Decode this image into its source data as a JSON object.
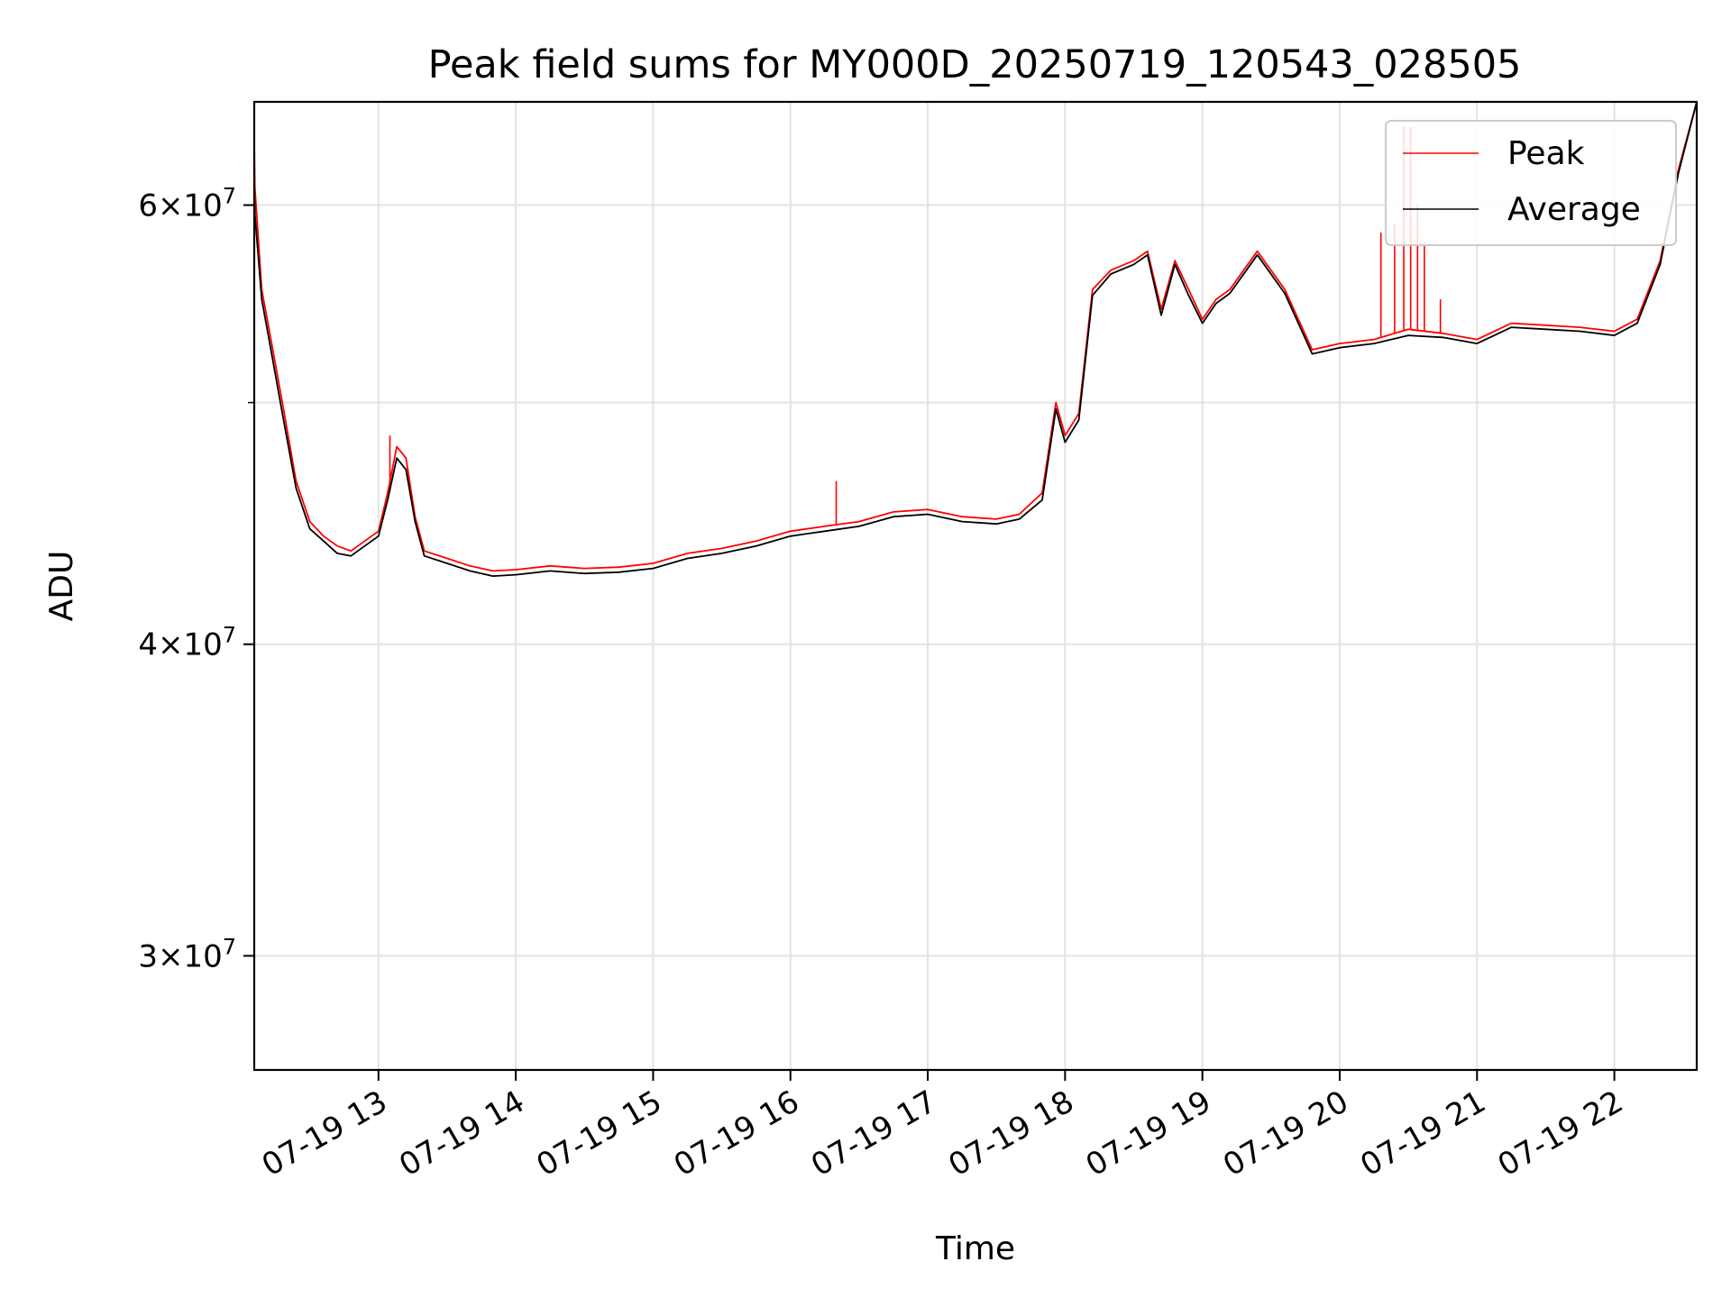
{
  "chart_data": {
    "type": "line",
    "title": "Peak field sums for MY000D_20250719_120543_028505",
    "xlabel": "Time",
    "ylabel": "ADU",
    "y_scale": "log",
    "xlim": [
      "07-19 12:05:43",
      "07-19 22:36:00"
    ],
    "ylim": [
      27000000,
      66000000
    ],
    "grid": true,
    "legend": "upper right",
    "x_ticks": [
      {
        "value": "07-19 13:00",
        "label": "07-19 13"
      },
      {
        "value": "07-19 14:00",
        "label": "07-19 14"
      },
      {
        "value": "07-19 15:00",
        "label": "07-19 15"
      },
      {
        "value": "07-19 16:00",
        "label": "07-19 16"
      },
      {
        "value": "07-19 17:00",
        "label": "07-19 17"
      },
      {
        "value": "07-19 18:00",
        "label": "07-19 18"
      },
      {
        "value": "07-19 19:00",
        "label": "07-19 19"
      },
      {
        "value": "07-19 20:00",
        "label": "07-19 20"
      },
      {
        "value": "07-19 21:00",
        "label": "07-19 21"
      },
      {
        "value": "07-19 22:00",
        "label": "07-19 22"
      }
    ],
    "y_major_ticks": [
      {
        "value": 30000000,
        "mantissa": "3",
        "exponent": "7"
      },
      {
        "value": 40000000,
        "mantissa": "4",
        "exponent": "7"
      },
      {
        "value": 60000000,
        "mantissa": "6",
        "exponent": "7"
      }
    ],
    "y_minor_ticks": [
      50000000
    ],
    "series": [
      {
        "name": "Peak",
        "color": "#ff0000",
        "points": [
          [
            "07-19 12:05:43",
            63500000
          ],
          [
            "07-19 12:06",
            61000000
          ],
          [
            "07-19 12:09",
            55500000
          ],
          [
            "07-19 12:13",
            53000000
          ],
          [
            "07-19 12:18",
            50000000
          ],
          [
            "07-19 12:24",
            46500000
          ],
          [
            "07-19 12:30",
            44800000
          ],
          [
            "07-19 12:36",
            44200000
          ],
          [
            "07-19 12:42",
            43800000
          ],
          [
            "07-19 12:48",
            43600000
          ],
          [
            "07-19 12:54",
            44000000
          ],
          [
            "07-19 13:00",
            44400000
          ],
          [
            "07-19 13:04",
            46000000
          ],
          [
            "07-19 13:08",
            48000000
          ],
          [
            "07-19 13:12",
            47500000
          ],
          [
            "07-19 13:16",
            45000000
          ],
          [
            "07-19 13:20",
            43600000
          ],
          [
            "07-19 13:30",
            43300000
          ],
          [
            "07-19 13:40",
            43000000
          ],
          [
            "07-19 13:50",
            42800000
          ],
          [
            "07-19 14:00",
            42850000
          ],
          [
            "07-19 14:15",
            43000000
          ],
          [
            "07-19 14:30",
            42900000
          ],
          [
            "07-19 14:45",
            42950000
          ],
          [
            "07-19 15:00",
            43100000
          ],
          [
            "07-19 15:15",
            43500000
          ],
          [
            "07-19 15:30",
            43700000
          ],
          [
            "07-19 15:45",
            44000000
          ],
          [
            "07-19 16:00",
            44400000
          ],
          [
            "07-19 16:15",
            44600000
          ],
          [
            "07-19 16:30",
            44800000
          ],
          [
            "07-19 16:45",
            45200000
          ],
          [
            "07-19 17:00",
            45300000
          ],
          [
            "07-19 17:15",
            45000000
          ],
          [
            "07-19 17:30",
            44900000
          ],
          [
            "07-19 17:40",
            45100000
          ],
          [
            "07-19 17:50",
            46000000
          ],
          [
            "07-19 17:56",
            50000000
          ],
          [
            "07-19 18:00",
            48500000
          ],
          [
            "07-19 18:06",
            49500000
          ],
          [
            "07-19 18:12",
            55500000
          ],
          [
            "07-19 18:20",
            56500000
          ],
          [
            "07-19 18:30",
            57000000
          ],
          [
            "07-19 18:36",
            57500000
          ],
          [
            "07-19 18:42",
            54500000
          ],
          [
            "07-19 18:48",
            57000000
          ],
          [
            "07-19 18:54",
            55500000
          ],
          [
            "07-19 19:00",
            54000000
          ],
          [
            "07-19 19:06",
            55000000
          ],
          [
            "07-19 19:12",
            55500000
          ],
          [
            "07-19 19:24",
            57500000
          ],
          [
            "07-19 19:36",
            55500000
          ],
          [
            "07-19 19:48",
            52500000
          ],
          [
            "07-19 20:00",
            52800000
          ],
          [
            "07-19 20:15",
            53000000
          ],
          [
            "07-19 20:30",
            53500000
          ],
          [
            "07-19 20:45",
            53300000
          ],
          [
            "07-19 21:00",
            53000000
          ],
          [
            "07-19 21:15",
            53800000
          ],
          [
            "07-19 21:30",
            53700000
          ],
          [
            "07-19 21:45",
            53600000
          ],
          [
            "07-19 22:00",
            53400000
          ],
          [
            "07-19 22:10",
            54000000
          ],
          [
            "07-19 22:20",
            57000000
          ],
          [
            "07-19 22:28",
            62000000
          ],
          [
            "07-19 22:36",
            66000000
          ]
        ],
        "spikes": [
          [
            "07-19 12:05:43",
            68000000
          ],
          [
            "07-19 13:05",
            48500000
          ],
          [
            "07-19 16:20",
            46500000
          ],
          [
            "07-19 20:18",
            58500000
          ],
          [
            "07-19 20:24",
            59000000
          ],
          [
            "07-19 20:28",
            64500000
          ],
          [
            "07-19 20:31",
            64500000
          ],
          [
            "07-19 20:34",
            60000000
          ],
          [
            "07-19 20:37",
            58000000
          ],
          [
            "07-19 20:44",
            55000000
          ]
        ]
      },
      {
        "name": "Average",
        "color": "#000000",
        "points": [
          [
            "07-19 12:05:43",
            61000000
          ],
          [
            "07-19 12:06",
            59500000
          ],
          [
            "07-19 12:09",
            55000000
          ],
          [
            "07-19 12:13",
            52500000
          ],
          [
            "07-19 12:18",
            49500000
          ],
          [
            "07-19 12:24",
            46200000
          ],
          [
            "07-19 12:30",
            44500000
          ],
          [
            "07-19 12:36",
            44000000
          ],
          [
            "07-19 12:42",
            43500000
          ],
          [
            "07-19 12:48",
            43400000
          ],
          [
            "07-19 12:54",
            43800000
          ],
          [
            "07-19 13:00",
            44200000
          ],
          [
            "07-19 13:04",
            45700000
          ],
          [
            "07-19 13:08",
            47500000
          ],
          [
            "07-19 13:12",
            47000000
          ],
          [
            "07-19 13:16",
            44800000
          ],
          [
            "07-19 13:20",
            43400000
          ],
          [
            "07-19 13:30",
            43100000
          ],
          [
            "07-19 13:40",
            42800000
          ],
          [
            "07-19 13:50",
            42600000
          ],
          [
            "07-19 14:00",
            42650000
          ],
          [
            "07-19 14:15",
            42800000
          ],
          [
            "07-19 14:30",
            42700000
          ],
          [
            "07-19 14:45",
            42750000
          ],
          [
            "07-19 15:00",
            42900000
          ],
          [
            "07-19 15:15",
            43300000
          ],
          [
            "07-19 15:30",
            43500000
          ],
          [
            "07-19 15:45",
            43800000
          ],
          [
            "07-19 16:00",
            44200000
          ],
          [
            "07-19 16:15",
            44400000
          ],
          [
            "07-19 16:30",
            44600000
          ],
          [
            "07-19 16:45",
            45000000
          ],
          [
            "07-19 17:00",
            45100000
          ],
          [
            "07-19 17:15",
            44800000
          ],
          [
            "07-19 17:30",
            44700000
          ],
          [
            "07-19 17:40",
            44900000
          ],
          [
            "07-19 17:50",
            45700000
          ],
          [
            "07-19 17:56",
            49700000
          ],
          [
            "07-19 18:00",
            48200000
          ],
          [
            "07-19 18:06",
            49200000
          ],
          [
            "07-19 18:12",
            55200000
          ],
          [
            "07-19 18:20",
            56300000
          ],
          [
            "07-19 18:30",
            56800000
          ],
          [
            "07-19 18:36",
            57300000
          ],
          [
            "07-19 18:42",
            54200000
          ],
          [
            "07-19 18:48",
            56800000
          ],
          [
            "07-19 18:54",
            55200000
          ],
          [
            "07-19 19:00",
            53800000
          ],
          [
            "07-19 19:06",
            54800000
          ],
          [
            "07-19 19:12",
            55300000
          ],
          [
            "07-19 19:24",
            57300000
          ],
          [
            "07-19 19:36",
            55300000
          ],
          [
            "07-19 19:48",
            52300000
          ],
          [
            "07-19 20:00",
            52600000
          ],
          [
            "07-19 20:15",
            52800000
          ],
          [
            "07-19 20:30",
            53200000
          ],
          [
            "07-19 20:45",
            53100000
          ],
          [
            "07-19 21:00",
            52800000
          ],
          [
            "07-19 21:15",
            53600000
          ],
          [
            "07-19 21:30",
            53500000
          ],
          [
            "07-19 21:45",
            53400000
          ],
          [
            "07-19 22:00",
            53200000
          ],
          [
            "07-19 22:10",
            53800000
          ],
          [
            "07-19 22:20",
            56800000
          ],
          [
            "07-19 22:28",
            61800000
          ],
          [
            "07-19 22:36",
            66000000
          ]
        ]
      }
    ]
  }
}
